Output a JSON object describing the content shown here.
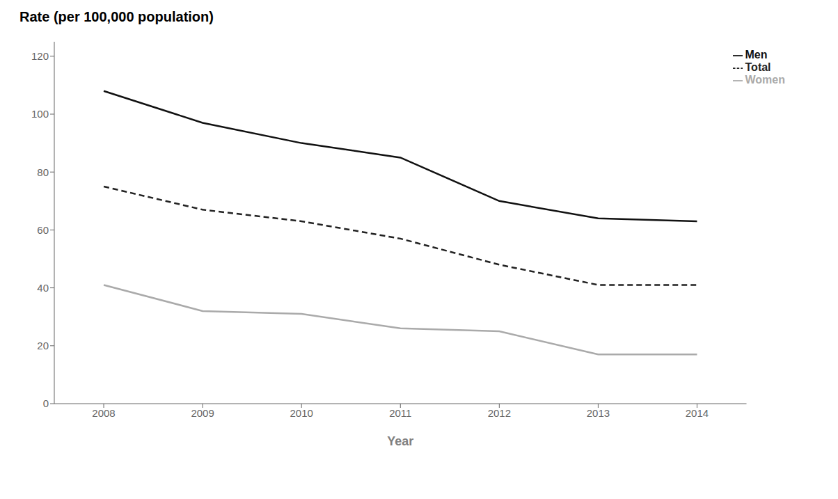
{
  "chart_data": {
    "type": "line",
    "title": "Rate (per 100,000 population)",
    "xlabel": "Year",
    "x": [
      2008,
      2009,
      2010,
      2011,
      2012,
      2013,
      2014
    ],
    "series": [
      {
        "name": "Total",
        "color": "#222222",
        "line_style": "dashed",
        "values": [
          75,
          67,
          63,
          57,
          48,
          41,
          41
        ]
      },
      {
        "name": "Men",
        "color": "#111111",
        "line_style": "solid",
        "values": [
          108,
          97,
          90,
          85,
          70,
          64,
          63
        ]
      },
      {
        "name": "Women",
        "color": "#aaaaaa",
        "line_style": "solid",
        "values": [
          41,
          32,
          31,
          26,
          25,
          17,
          17
        ]
      }
    ],
    "xlim": [
      2007.5,
      2014.5
    ],
    "xticks": [
      2008,
      2009,
      2010,
      2011,
      2012,
      2013,
      2014
    ],
    "ylim": [
      0,
      125
    ],
    "yticks": [
      0,
      20,
      40,
      60,
      80,
      100,
      120
    ],
    "grid": false,
    "legend": "upper right"
  }
}
